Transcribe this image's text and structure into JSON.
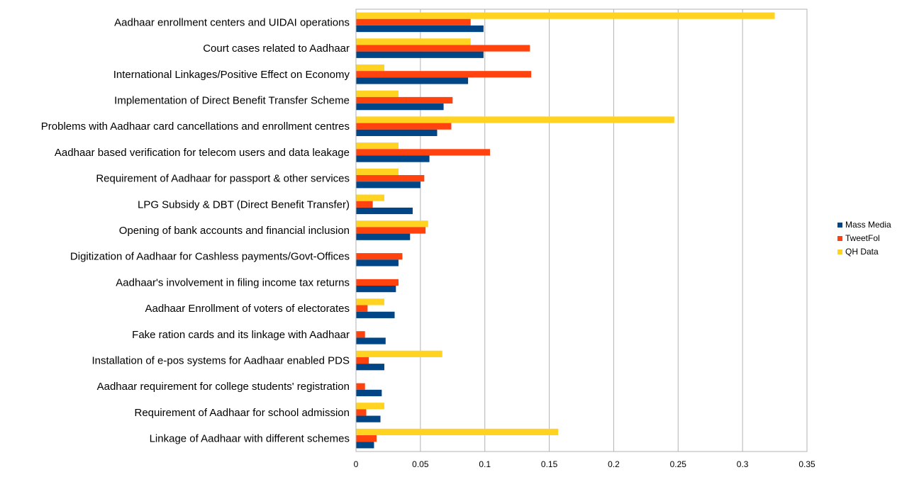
{
  "chart_data": {
    "type": "bar",
    "orientation": "horizontal",
    "categories": [
      "Aadhaar enrollment centers and UIDAI operations",
      "Court cases related to Aadhaar",
      "International Linkages/Positive Effect on Economy",
      "Implementation of Direct Benefit Transfer Scheme",
      "Problems with Aadhaar card cancellations and enrollment centres",
      "Aadhaar based verification for telecom users and data leakage",
      "Requirement of Aadhaar for passport & other services",
      "LPG Subsidy & DBT (Direct Benefit Transfer)",
      "Opening of bank accounts and financial inclusion",
      "Digitization of Aadhaar for Cashless payments/Govt-Offices",
      "Aadhaar's involvement in filing income tax returns",
      "Aadhaar Enrollment of voters of electorates",
      "Fake ration cards and its linkage with Aadhaar",
      "Installation of e-pos systems for Aadhaar enabled PDS",
      "Aadhaar requirement for college students' registration",
      "Requirement of Aadhaar for school admission",
      "Linkage of Aadhaar with different schemes"
    ],
    "series": [
      {
        "name": "Mass Media",
        "color": "#004586",
        "values": [
          0.099,
          0.099,
          0.087,
          0.068,
          0.063,
          0.057,
          0.05,
          0.044,
          0.042,
          0.033,
          0.031,
          0.03,
          0.023,
          0.022,
          0.02,
          0.019,
          0.014
        ]
      },
      {
        "name": "TweetFol",
        "color": "#ff420e",
        "values": [
          0.089,
          0.135,
          0.136,
          0.075,
          0.074,
          0.104,
          0.053,
          0.013,
          0.054,
          0.036,
          0.033,
          0.009,
          0.007,
          0.01,
          0.007,
          0.008,
          0.016
        ]
      },
      {
        "name": "QH Data",
        "color": "#ffd320",
        "values": [
          0.325,
          0.089,
          0.022,
          0.033,
          0.247,
          0.033,
          0.033,
          0.022,
          0.056,
          0.0,
          0.0,
          0.022,
          0.0,
          0.067,
          0.0,
          0.022,
          0.157
        ]
      }
    ],
    "x_ticks": [
      "0",
      "0.05",
      "0.1",
      "0.15",
      "0.2",
      "0.25",
      "0.3",
      "0.35"
    ],
    "xlim": [
      0,
      0.35
    ],
    "grid": true,
    "legend_position": "right",
    "title": "",
    "xlabel": "",
    "ylabel": ""
  }
}
